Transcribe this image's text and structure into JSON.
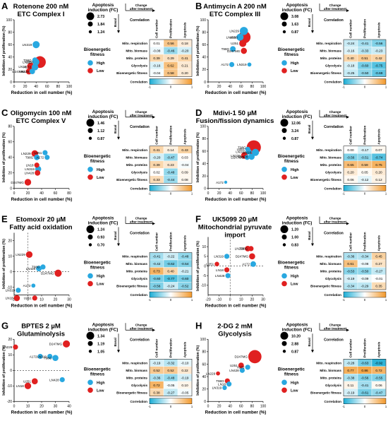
{
  "colors": {
    "high": "#29a8e0",
    "low": "#e02020"
  },
  "common": {
    "apoptosis_title": [
      "Apoptosis",
      "induction (FC)"
    ],
    "change_label": [
      "Change",
      "after treatment"
    ],
    "basal_label": "Basal",
    "correlation_label": "Correlation",
    "col_headers": [
      "Cell number",
      "Proliferation",
      "Apoptosis"
    ],
    "row_labels": [
      "Mito. respiration",
      "Mito. biomass",
      "Mito. proteins",
      "Glycolysis",
      "Bioenergetic fitness"
    ],
    "fitness_title": [
      "Bioenergetic",
      "fitness"
    ],
    "fitness_levels": [
      "High",
      "Low"
    ],
    "colorbar_ticks": [
      "-1",
      "0",
      "1"
    ],
    "xlabel": "Reduction in cell number (%)",
    "ylabel": "Inhibition of proliferation (%)"
  },
  "chart_data": [
    {
      "panel": "A",
      "title": [
        "Rotenone 200 nM",
        "ETC Complex I"
      ],
      "type": "scatter",
      "xlim": [
        0,
        100
      ],
      "ylim": [
        0,
        100
      ],
      "xticks": [
        0,
        20,
        40,
        60,
        80,
        100
      ],
      "yticks": [
        0,
        20,
        40,
        60,
        80,
        100
      ],
      "size_legend": [
        "2.73",
        "1.84",
        "1.24"
      ],
      "points": [
        {
          "label": "LN319",
          "x": 40,
          "y": 60,
          "r": 1.4,
          "fit": "high"
        },
        {
          "label": "T98G",
          "x": 38,
          "y": 35,
          "r": 1.1,
          "fit": "high"
        },
        {
          "label": "LN229",
          "x": 40,
          "y": 32,
          "r": 1.3,
          "fit": "high"
        },
        {
          "label": "U251",
          "x": 47,
          "y": 32,
          "r": 2.3,
          "fit": "low"
        },
        {
          "label": "LN18",
          "x": 30,
          "y": 25,
          "r": 1.4,
          "fit": "low"
        },
        {
          "label": "A172",
          "x": 38,
          "y": 24,
          "r": 1.3,
          "fit": "high"
        },
        {
          "label": "D247MG",
          "x": 27,
          "y": 17,
          "r": 1.2,
          "fit": "low"
        },
        {
          "label": "LN428",
          "x": 33,
          "y": 17,
          "r": 1.1,
          "fit": "high"
        }
      ],
      "heatmap": [
        [
          0.01,
          0.56,
          0.18
        ],
        [
          -0.08,
          -0.46,
          -0.2
        ],
        [
          0.39,
          0.29,
          0.41
        ],
        [
          -0.16,
          0.62,
          0.21
        ],
        [
          -0.04,
          0.58,
          0.2
        ]
      ]
    },
    {
      "panel": "B",
      "title": [
        "Antimycin A 200 nM",
        "ETC Complex III"
      ],
      "type": "scatter",
      "xlim": [
        0,
        100
      ],
      "ylim": [
        0,
        100
      ],
      "xticks": [
        0,
        20,
        40,
        60,
        80,
        100
      ],
      "yticks": [
        0,
        20,
        40,
        60,
        80,
        100
      ],
      "size_legend": [
        "3.08",
        "1.63",
        "0.87"
      ],
      "points": [
        {
          "label": "LN229",
          "x": 65,
          "y": 82,
          "r": 1.6,
          "fit": "high"
        },
        {
          "label": "LN428",
          "x": 58,
          "y": 72,
          "r": 1.4,
          "fit": "high"
        },
        {
          "label": "LN18",
          "x": 66,
          "y": 72,
          "r": 2.4,
          "fit": "low"
        },
        {
          "label": "U251",
          "x": 63,
          "y": 62,
          "r": 1.4,
          "fit": "low"
        },
        {
          "label": "T98G",
          "x": 45,
          "y": 53,
          "r": 1.1,
          "fit": "high"
        },
        {
          "label": "D247MG",
          "x": 65,
          "y": 50,
          "r": 1.2,
          "fit": "low"
        },
        {
          "label": "A172",
          "x": 43,
          "y": 28,
          "r": 1.0,
          "fit": "high"
        },
        {
          "label": "LN319",
          "x": 75,
          "y": 28,
          "r": 0.8,
          "fit": "high"
        }
      ],
      "heatmap": [
        [
          -0.24,
          -0.41,
          -0.56
        ],
        [
          -0.16,
          -0.33,
          -0.23
        ],
        [
          0.4,
          0.51,
          0.42
        ],
        [
          -0.18,
          -0.6,
          -0.75
        ],
        [
          -0.25,
          -0.5,
          -0.69
        ]
      ]
    },
    {
      "panel": "C",
      "title": [
        "Oligomycin 100 nM",
        "ETC Complex V"
      ],
      "type": "scatter",
      "xlim": [
        0,
        80
      ],
      "ylim": [
        0,
        80
      ],
      "xticks": [
        0,
        20,
        40,
        60,
        80
      ],
      "yticks": [
        0,
        20,
        40,
        60,
        80
      ],
      "size_legend": [
        "1.46",
        "1.12",
        "0.87"
      ],
      "points": [
        {
          "label": "LN229",
          "x": 30,
          "y": 45,
          "r": 1.3,
          "fit": "low"
        },
        {
          "label": "U251",
          "x": 45,
          "y": 46,
          "r": 1.0,
          "fit": "high"
        },
        {
          "label": "T98G",
          "x": 33,
          "y": 40,
          "r": 1.1,
          "fit": "high"
        },
        {
          "label": "A172",
          "x": 48,
          "y": 40,
          "r": 1.0,
          "fit": "high"
        },
        {
          "label": "LN18",
          "x": 33,
          "y": 30,
          "r": 1.0,
          "fit": "low"
        },
        {
          "label": "LN319",
          "x": 35,
          "y": 25,
          "r": 1.2,
          "fit": "high"
        },
        {
          "label": "LN428",
          "x": 34,
          "y": 20,
          "r": 1.1,
          "fit": "low"
        },
        {
          "label": "D247MG",
          "x": 20,
          "y": 8,
          "r": 1.3,
          "fit": "low"
        }
      ],
      "heatmap": [
        [
          0.41,
          0.14,
          0.43
        ],
        [
          -0.2,
          -0.47,
          0.03
        ],
        [
          0.39,
          0.23,
          -0.04
        ],
        [
          0.02,
          -0.48,
          0.09
        ],
        [
          0.33,
          -0.44,
          0.08
        ]
      ]
    },
    {
      "panel": "D",
      "title": [
        "Mdivi-1 50 µM",
        "Fusion/fission dynamics"
      ],
      "type": "scatter",
      "xlim": [
        0,
        100
      ],
      "ylim": [
        0,
        100
      ],
      "xticks": [
        0,
        20,
        40,
        60,
        80,
        100
      ],
      "yticks": [
        0,
        20,
        40,
        60,
        80,
        100
      ],
      "size_legend": [
        "12.06",
        "3.24",
        "0.87"
      ],
      "points": [
        {
          "label": "T98G",
          "x": 83,
          "y": 66,
          "r": 2.8,
          "fit": "low"
        },
        {
          "label": "U251",
          "x": 72,
          "y": 63,
          "r": 1.0,
          "fit": "high"
        },
        {
          "label": "LN319",
          "x": 74,
          "y": 59,
          "r": 1.1,
          "fit": "high"
        },
        {
          "label": "LN229",
          "x": 66,
          "y": 53,
          "r": 1.3,
          "fit": "low"
        },
        {
          "label": "D247MG",
          "x": 71,
          "y": 50,
          "r": 1.0,
          "fit": "high"
        },
        {
          "label": "LN428",
          "x": 79,
          "y": 51,
          "r": 1.2,
          "fit": "high"
        },
        {
          "label": "LN18",
          "x": 86,
          "y": 58,
          "r": 1.4,
          "fit": "high"
        },
        {
          "label": "A172",
          "x": 32,
          "y": 10,
          "r": 0.6,
          "fit": "high"
        }
      ],
      "heatmap": [
        [
          0.0,
          -0.17,
          0.07
        ],
        [
          -0.56,
          -0.51,
          -0.74
        ],
        [
          0.65,
          0.59,
          0.75
        ],
        [
          0.2,
          0.05,
          0.2
        ],
        [
          0.06,
          -0.12,
          0.12
        ]
      ]
    },
    {
      "panel": "E",
      "title": [
        "Etomoxir 20 µM",
        "Fatty acid oxidation"
      ],
      "type": "scatter",
      "xlim": [
        -10,
        30
      ],
      "ylim": [
        -15,
        25
      ],
      "xticks": [
        -10,
        0,
        10,
        20,
        30
      ],
      "yticks": [
        -10,
        0,
        10,
        20
      ],
      "size_legend": [
        "1.24",
        "0.93",
        "0.70"
      ],
      "points": [
        {
          "label": "LN229",
          "x": 1,
          "y": 11,
          "r": 1.3,
          "fit": "low"
        },
        {
          "label": "LN428",
          "x": 8,
          "y": 2,
          "r": 1.1,
          "fit": "high"
        },
        {
          "label": "T98G",
          "x": 11,
          "y": 3,
          "r": 1.0,
          "fit": "high"
        },
        {
          "label": "D247MG",
          "x": 22,
          "y": -1,
          "r": 1.4,
          "fit": "low"
        },
        {
          "label": "A172",
          "x": 4,
          "y": -9,
          "r": 0.8,
          "fit": "high"
        },
        {
          "label": "LN319",
          "x": -7,
          "y": -12,
          "r": 1.0,
          "fit": "high"
        },
        {
          "label": "LN18",
          "x": -8,
          "y": -17,
          "r": 1.2,
          "fit": "low"
        },
        {
          "label": "U251",
          "x": 5,
          "y": -17,
          "r": 1.0,
          "fit": "low"
        }
      ],
      "heatmap": [
        [
          -0.41,
          -0.22,
          -0.48
        ],
        [
          -0.42,
          -0.62,
          -0.54
        ],
        [
          0.73,
          0.4,
          -0.21
        ],
        [
          -0.6,
          -0.77,
          -0.6
        ],
        [
          -0.56,
          -0.24,
          -0.52
        ]
      ]
    },
    {
      "panel": "F",
      "title": [
        "UK5099 20 µM",
        "Mitochondrial pyruvate",
        "import"
      ],
      "type": "scatter",
      "xlim": [
        -20,
        30
      ],
      "ylim": [
        -15,
        15
      ],
      "xticks": [
        -20,
        -10,
        0,
        10,
        20,
        30
      ],
      "yticks": [
        -10,
        -5,
        0,
        5,
        10
      ],
      "size_legend": [
        "1.20",
        "1.00",
        "0.83"
      ],
      "points": [
        {
          "label": "LN229",
          "x": 16,
          "y": 9,
          "r": 1.1,
          "fit": "low"
        },
        {
          "label": "T98G",
          "x": 19,
          "y": 9,
          "r": 1.0,
          "fit": "low"
        },
        {
          "label": "D247MG",
          "x": 20,
          "y": 5,
          "r": 1.2,
          "fit": "low"
        },
        {
          "label": "LN319",
          "x": -3,
          "y": 5,
          "r": 1.0,
          "fit": "high"
        },
        {
          "label": "A172",
          "x": 21,
          "y": 1,
          "r": 1.1,
          "fit": "high"
        },
        {
          "label": "U251",
          "x": -12,
          "y": 1,
          "r": 0.9,
          "fit": "low"
        },
        {
          "label": "LN18",
          "x": -3,
          "y": -2,
          "r": 1.0,
          "fit": "low"
        },
        {
          "label": "LN428",
          "x": -2,
          "y": -5,
          "r": 1.0,
          "fit": "high"
        }
      ],
      "heatmap": [
        [
          -0.36,
          -0.34,
          0.45
        ],
        [
          0.61,
          -0.08,
          0.27
        ],
        [
          -0.53,
          -0.5,
          -0.27
        ],
        [
          -0.19,
          -0.09,
          -0.01
        ],
        [
          -0.34,
          -0.29,
          0.35
        ]
      ]
    },
    {
      "panel": "G",
      "title": [
        "BPTES 2 µM",
        "Glutaminolysis"
      ],
      "type": "scatter",
      "xlim": [
        0,
        40
      ],
      "ylim": [
        -20,
        20
      ],
      "xticks": [
        0,
        10,
        20,
        30,
        40
      ],
      "yticks": [
        -20,
        -10,
        0,
        10,
        20
      ],
      "size_legend": [
        "1.34",
        "1.19",
        "1.05"
      ],
      "points": [
        {
          "label": "D247MG",
          "x": 38,
          "y": 17,
          "r": 1.4,
          "fit": "low"
        },
        {
          "label": "LN229",
          "x": 1,
          "y": 15,
          "r": 1.0,
          "fit": "low"
        },
        {
          "label": "A172",
          "x": 19,
          "y": 9,
          "r": 1.0,
          "fit": "high"
        },
        {
          "label": "LN319",
          "x": 26,
          "y": 9,
          "r": 1.0,
          "fit": "high"
        },
        {
          "label": "T98G",
          "x": 30,
          "y": 8,
          "r": 1.2,
          "fit": "high"
        },
        {
          "label": "LN428",
          "x": 35,
          "y": -6,
          "r": 1.0,
          "fit": "high"
        },
        {
          "label": "U251",
          "x": 15,
          "y": -7,
          "r": 1.2,
          "fit": "low"
        },
        {
          "label": "LN18",
          "x": 10,
          "y": -10,
          "r": 1.3,
          "fit": "low"
        }
      ],
      "heatmap": [
        [
          -0.19,
          -0.32,
          -0.1
        ],
        [
          0.52,
          0.52,
          0.22
        ],
        [
          -0.36,
          -0.48,
          -0.19
        ],
        [
          0.72,
          -0.05,
          0.1
        ],
        [
          0.38,
          -0.27,
          -0.05
        ]
      ]
    },
    {
      "panel": "H",
      "title": [
        "2-DG 2 mM",
        "Glycolysis"
      ],
      "type": "scatter",
      "xlim": [
        0,
        100
      ],
      "ylim": [
        0,
        100
      ],
      "xticks": [
        0,
        20,
        40,
        60,
        80,
        100
      ],
      "yticks": [
        0,
        20,
        40,
        60,
        80,
        100
      ],
      "size_legend": [
        "10.20",
        "2.88",
        "0.87"
      ],
      "points": [
        {
          "label": "D247MG",
          "x": 85,
          "y": 72,
          "r": 2.6,
          "fit": "low"
        },
        {
          "label": "U251",
          "x": 60,
          "y": 58,
          "r": 1.1,
          "fit": "low"
        },
        {
          "label": "A172",
          "x": 72,
          "y": 55,
          "r": 1.0,
          "fit": "high"
        },
        {
          "label": "LN428",
          "x": 62,
          "y": 50,
          "r": 1.0,
          "fit": "high"
        },
        {
          "label": "LN229",
          "x": 18,
          "y": 45,
          "r": 0.8,
          "fit": "low"
        },
        {
          "label": "T98G",
          "x": 35,
          "y": 33,
          "r": 1.0,
          "fit": "low"
        },
        {
          "label": "LN18",
          "x": 38,
          "y": 28,
          "r": 1.0,
          "fit": "high"
        },
        {
          "label": "LN319",
          "x": 30,
          "y": 22,
          "r": 0.9,
          "fit": "high"
        }
      ],
      "heatmap": [
        [
          -0.28,
          -0.63,
          -0.92
        ],
        [
          0.77,
          0.86,
          0.72
        ],
        [
          -0.38,
          -0.56,
          -0.55
        ],
        [
          0.11,
          -0.41,
          0.06
        ],
        [
          -0.19,
          -0.61,
          -0.47
        ]
      ]
    }
  ]
}
